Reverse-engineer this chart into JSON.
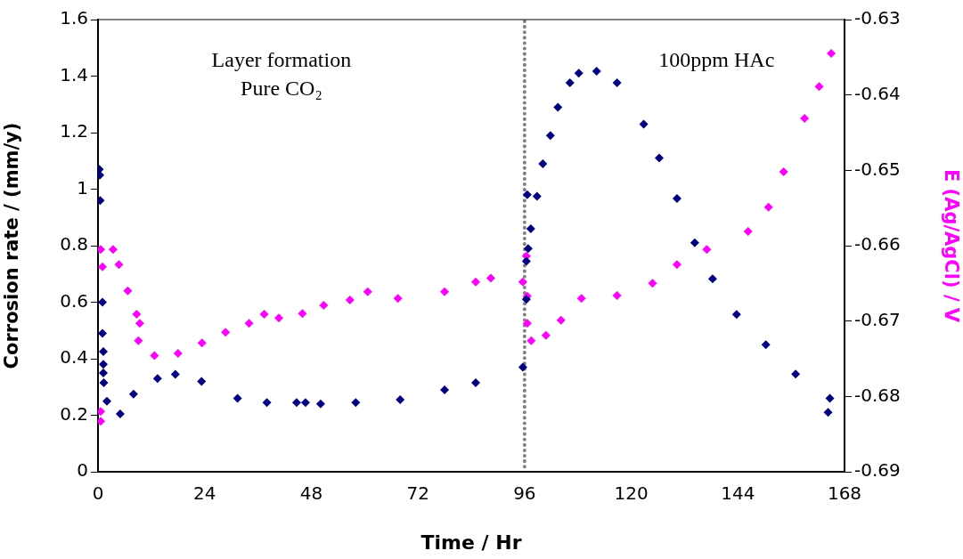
{
  "chart_data": {
    "type": "scatter",
    "xlabel": "Time / Hr",
    "ylabel": "Corrosion rate / (mm/y)",
    "y2label": "E (Ag/AgCl) / V",
    "xlim": [
      0,
      168
    ],
    "xticks": [
      0,
      24,
      48,
      72,
      96,
      120,
      144,
      168
    ],
    "ylim": [
      0,
      1.6
    ],
    "yticks": [
      0,
      0.2,
      0.4,
      0.6,
      0.8,
      1,
      1.2,
      1.4,
      1.6
    ],
    "y2lim": [
      -0.69,
      -0.63
    ],
    "y2ticks": [
      -0.69,
      -0.68,
      -0.67,
      -0.66,
      -0.65,
      -0.64,
      -0.63
    ],
    "grid": false,
    "legend": false,
    "marker": "diamond",
    "series": [
      {
        "color": "#000080",
        "x": [
          0.3,
          0.4,
          0.5,
          1.0,
          1.0,
          1.2,
          1.2,
          1.2,
          1.3,
          2,
          5,
          8,
          13.4,
          17.4,
          23.3,
          31.4,
          38,
          44.7,
          46.7,
          50.1,
          58,
          68,
          78,
          85,
          95.6,
          96.6,
          96.4,
          96.4,
          96.8,
          97.4,
          98.8,
          100.1,
          101.8,
          103.5,
          106.2,
          108.2,
          112.2,
          116.8,
          122.8,
          126.3,
          130.3,
          134.3,
          138.3,
          143.7,
          150.3,
          157,
          164.3,
          164.7
        ],
        "values": [
          1.07,
          1.05,
          0.96,
          0.6,
          0.49,
          0.425,
          0.38,
          0.35,
          0.315,
          0.25,
          0.205,
          0.275,
          0.33,
          0.345,
          0.32,
          0.26,
          0.245,
          0.245,
          0.245,
          0.24,
          0.245,
          0.255,
          0.29,
          0.315,
          0.37,
          0.98,
          0.745,
          0.61,
          0.79,
          0.86,
          0.975,
          1.09,
          1.19,
          1.29,
          1.376,
          1.41,
          1.417,
          1.376,
          1.23,
          1.11,
          0.967,
          0.81,
          0.683,
          0.557,
          0.45,
          0.346,
          0.21,
          0.26
        ]
      },
      {
        "color": "#ff00ff",
        "axis": "y2",
        "x": [
          0.6,
          0.6,
          0.6,
          1,
          3.4,
          4.7,
          6.7,
          8.7,
          9.4,
          9.1,
          12.7,
          18,
          23.4,
          28.7,
          34,
          37.4,
          40.7,
          46,
          50.8,
          56.7,
          60.7,
          67.5,
          78,
          85,
          88.4,
          95.6,
          96.4,
          96.6,
          96.6,
          97.5,
          100.8,
          104.2,
          108.8,
          116.8,
          124.8,
          130.3,
          137,
          146.3,
          150.9,
          154.3,
          159,
          162.3,
          165
        ],
        "values": [
          -0.6605,
          -0.682,
          -0.6833,
          -0.6628,
          -0.6605,
          -0.6625,
          -0.666,
          -0.6691,
          -0.6703,
          -0.6726,
          -0.6746,
          -0.6743,
          -0.6729,
          -0.6715,
          -0.6703,
          -0.6691,
          -0.6696,
          -0.669,
          -0.6679,
          -0.6672,
          -0.6661,
          -0.667,
          -0.6661,
          -0.6648,
          -0.6643,
          -0.6648,
          -0.6614,
          -0.6667,
          -0.6703,
          -0.6726,
          -0.6719,
          -0.6699,
          -0.667,
          -0.6666,
          -0.665,
          -0.6625,
          -0.6605,
          -0.6581,
          -0.6549,
          -0.6502,
          -0.6431,
          -0.6389,
          -0.6345
        ]
      }
    ],
    "ref_lines": [
      {
        "axis": "x",
        "value": 96,
        "color": "#808080",
        "line_style": "dotted"
      }
    ],
    "annotations": [
      "Layer formation\nPure CO₂",
      "100ppm HAc"
    ]
  }
}
